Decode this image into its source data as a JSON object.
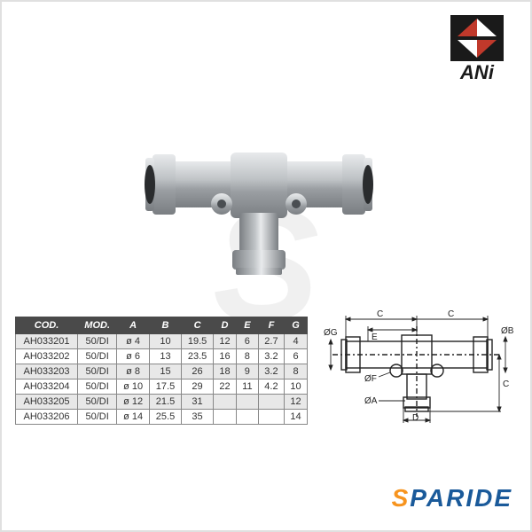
{
  "brand_logo_text": "ANi",
  "brand_logo_color": "#1a1a1a",
  "watermark_char": "S",
  "watermark_color": "#f0f0f0",
  "footer_brand_lead": "S",
  "footer_brand_rest": "PARIDE",
  "footer_lead_color": "#f7941e",
  "footer_rest_color": "#1a5a9a",
  "table": {
    "header_bg": "#4a4a4a",
    "header_fg": "#ffffff",
    "row_odd_bg": "#e8e8e8",
    "row_even_bg": "#ffffff",
    "border_color": "#888888",
    "font_size": 11,
    "columns": [
      "COD.",
      "MOD.",
      "A",
      "B",
      "C",
      "D",
      "E",
      "F",
      "G"
    ],
    "rows": [
      [
        "AH033201",
        "50/DI",
        "ø 4",
        "10",
        "19.5",
        "12",
        "6",
        "2.7",
        "4"
      ],
      [
        "AH033202",
        "50/DI",
        "ø 6",
        "13",
        "23.5",
        "16",
        "8",
        "3.2",
        "6"
      ],
      [
        "AH033203",
        "50/DI",
        "ø 8",
        "15",
        "26",
        "18",
        "9",
        "3.2",
        "8"
      ],
      [
        "AH033204",
        "50/DI",
        "ø 10",
        "17.5",
        "29",
        "22",
        "11",
        "4.2",
        "10"
      ],
      [
        "AH033205",
        "50/DI",
        "ø 12",
        "21.5",
        "31",
        "",
        "",
        "",
        "12"
      ],
      [
        "AH033206",
        "50/DI",
        "ø 14",
        "25.5",
        "35",
        "",
        "",
        "",
        "14"
      ]
    ]
  },
  "diagram": {
    "stroke_color": "#222222",
    "stroke_width": 1.4,
    "label_fontsize": 10,
    "labels": {
      "C_left": "C",
      "C_right": "C",
      "C_bottom": "C",
      "E": "E",
      "D": "D",
      "phiA": "ØA",
      "phiB": "ØB",
      "phiF": "ØF",
      "phiG": "ØG"
    }
  },
  "product": {
    "body_color": "#bfc3c6",
    "highlight_color": "#e8eaec",
    "shadow_color": "#7a7e82"
  }
}
